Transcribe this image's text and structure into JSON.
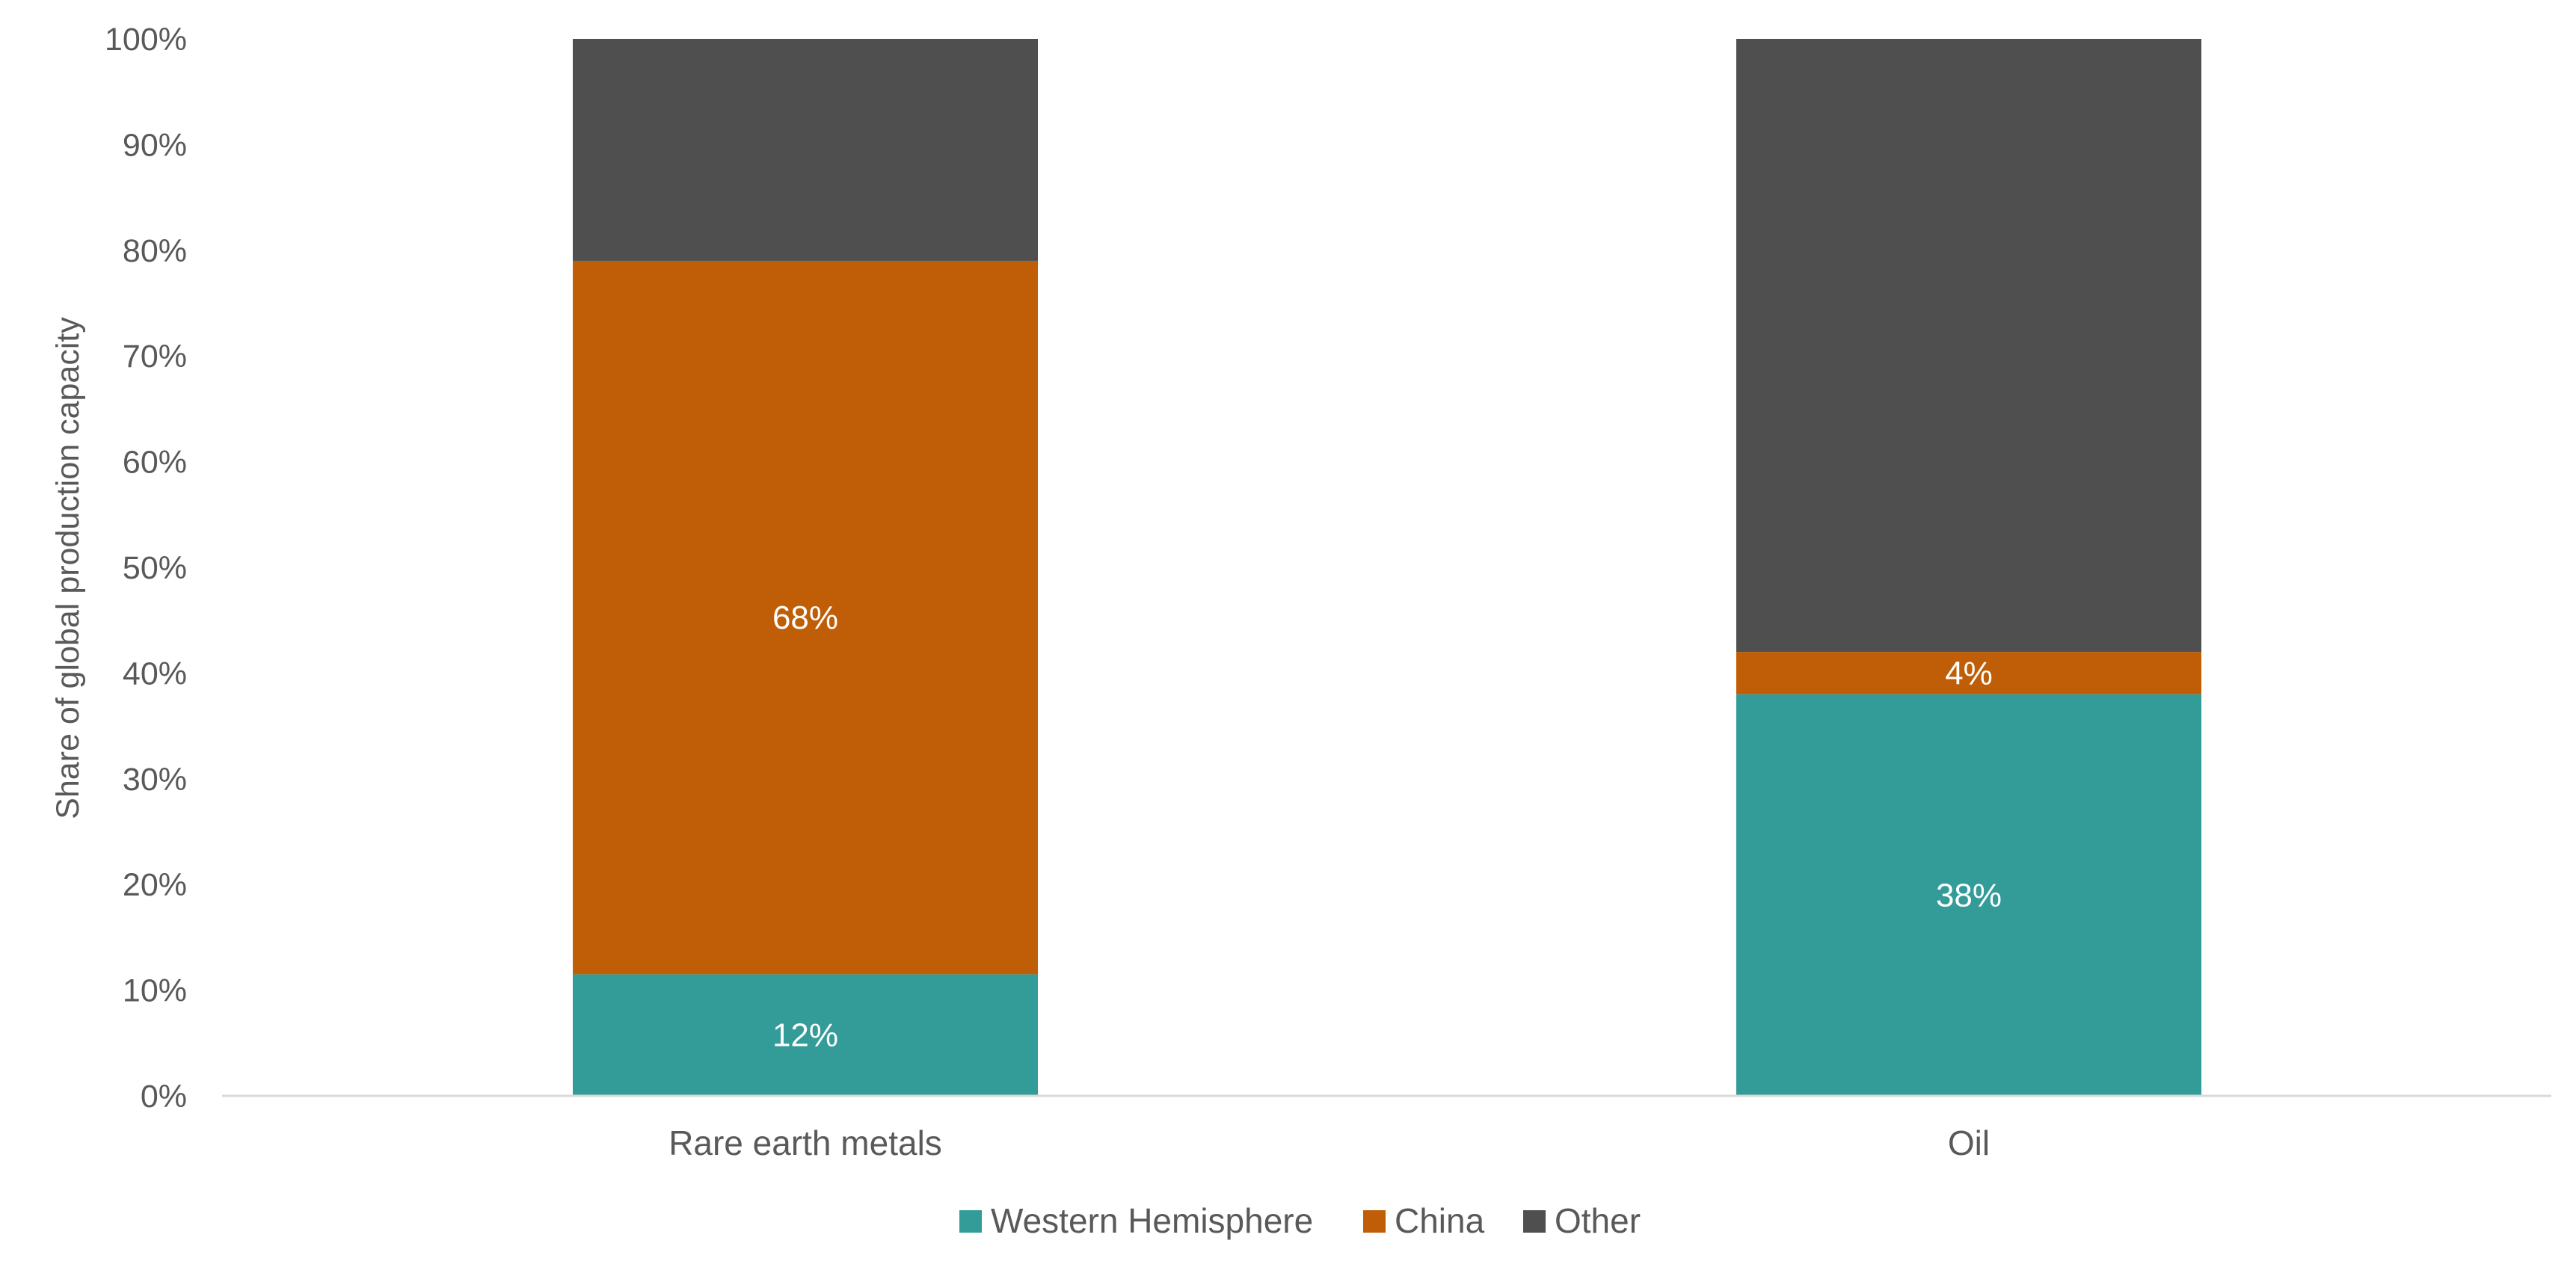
{
  "chart_data": {
    "type": "bar",
    "stacked": true,
    "title": "",
    "xlabel": "",
    "ylabel": "Share of global production capacity",
    "ylim": [
      0,
      100
    ],
    "yticks": [
      "0%",
      "10%",
      "20%",
      "30%",
      "40%",
      "50%",
      "60%",
      "70%",
      "80%",
      "90%",
      "100%"
    ],
    "categories": [
      "Rare earth metals",
      "Oil"
    ],
    "series": [
      {
        "name": "Western Hemisphere",
        "color": "#339B98",
        "values": [
          11.5,
          38
        ],
        "labels": [
          "12%",
          "38%"
        ]
      },
      {
        "name": "China",
        "color": "#BF5E06",
        "values": [
          67.5,
          4
        ],
        "labels": [
          "68%",
          "4%"
        ]
      },
      {
        "name": "Other",
        "color": "#4F4F4F",
        "values": [
          21,
          58
        ],
        "labels": [
          "",
          ""
        ]
      }
    ],
    "grid": false,
    "legend_position": "bottom"
  }
}
